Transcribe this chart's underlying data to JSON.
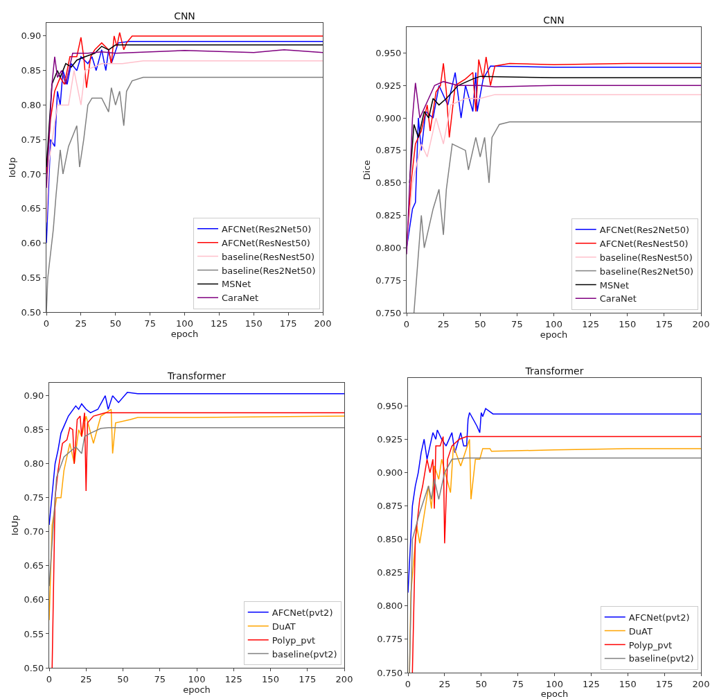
{
  "chart_data": [
    {
      "type": "line",
      "title": "CNN",
      "xlabel": "epoch",
      "ylabel": "IoUp",
      "legend": "bottom right",
      "xlim": [
        0,
        200
      ],
      "xticks": [
        0,
        25,
        50,
        75,
        100,
        125,
        150,
        175,
        200
      ],
      "ylim": [
        0.5,
        0.919
      ],
      "yticks": [
        {
          "value": 0.5,
          "label": "0.50"
        },
        {
          "value": 0.55,
          "label": "0.55"
        },
        {
          "value": 0.6,
          "label": "0.60"
        },
        {
          "value": 0.65,
          "label": "0.65"
        },
        {
          "value": 0.7,
          "label": "0.70"
        },
        {
          "value": 0.75,
          "label": "0.75"
        },
        {
          "value": 0.8,
          "label": "0.80"
        },
        {
          "value": 0.85,
          "label": "0.85"
        },
        {
          "value": 0.9,
          "label": "0.90"
        }
      ],
      "series": [
        {
          "name": "AFCNet(Res2Net50)",
          "color": "#0000ff",
          "x": [
            0,
            3,
            6,
            8,
            10,
            12,
            15,
            18,
            22,
            25,
            30,
            33,
            36,
            40,
            43,
            45,
            47,
            52,
            60,
            100,
            150,
            200
          ],
          "values": [
            0.6,
            0.75,
            0.74,
            0.82,
            0.8,
            0.85,
            0.83,
            0.86,
            0.85,
            0.87,
            0.86,
            0.87,
            0.85,
            0.88,
            0.85,
            0.88,
            0.86,
            0.89,
            0.892,
            0.892,
            0.892,
            0.892
          ]
        },
        {
          "name": "AFCNet(ResNest50)",
          "color": "#ff0000",
          "x": [
            0,
            3,
            6,
            10,
            13,
            17,
            22,
            25,
            27,
            29,
            32,
            35,
            40,
            45,
            47,
            49,
            51,
            53,
            56,
            58,
            62,
            100,
            150,
            200
          ],
          "values": [
            0.7,
            0.78,
            0.82,
            0.84,
            0.83,
            0.87,
            0.87,
            0.898,
            0.87,
            0.825,
            0.87,
            0.88,
            0.89,
            0.88,
            0.86,
            0.9,
            0.885,
            0.905,
            0.88,
            0.89,
            0.9,
            0.9,
            0.9,
            0.9
          ]
        },
        {
          "name": "baseline(ResNest50)",
          "color": "#ffc0cb",
          "x": [
            0,
            2,
            8,
            16,
            20,
            25,
            28,
            40,
            55,
            70,
            100,
            150,
            200
          ],
          "values": [
            0.63,
            0.72,
            0.8,
            0.8,
            0.85,
            0.8,
            0.85,
            0.86,
            0.86,
            0.864,
            0.864,
            0.864,
            0.864
          ]
        },
        {
          "name": "baseline(Res2Net50)",
          "color": "#808080",
          "x": [
            0,
            1,
            5,
            7,
            10,
            12,
            16,
            20,
            22,
            24,
            27,
            30,
            33,
            40,
            45,
            47,
            50,
            53,
            56,
            58,
            62,
            70,
            100,
            150,
            200
          ],
          "values": [
            0.5,
            0.55,
            0.62,
            0.67,
            0.735,
            0.7,
            0.74,
            0.76,
            0.77,
            0.71,
            0.75,
            0.8,
            0.81,
            0.81,
            0.79,
            0.825,
            0.8,
            0.82,
            0.77,
            0.82,
            0.835,
            0.84,
            0.84,
            0.84,
            0.84
          ]
        },
        {
          "name": "MSNet",
          "color": "#000000",
          "x": [
            0,
            4,
            8,
            10,
            14,
            18,
            22,
            28,
            35,
            40,
            45,
            50,
            100,
            150,
            200
          ],
          "values": [
            0.71,
            0.83,
            0.85,
            0.84,
            0.86,
            0.855,
            0.865,
            0.87,
            0.875,
            0.885,
            0.88,
            0.887,
            0.887,
            0.887,
            0.887
          ]
        },
        {
          "name": "CaraNet",
          "color": "#800080",
          "x": [
            0,
            4,
            6,
            8,
            11,
            14,
            19,
            30,
            40,
            50,
            100,
            150,
            172,
            200
          ],
          "values": [
            0.68,
            0.83,
            0.87,
            0.84,
            0.85,
            0.83,
            0.875,
            0.875,
            0.877,
            0.875,
            0.879,
            0.876,
            0.88,
            0.876
          ]
        }
      ]
    },
    {
      "type": "line",
      "title": "CNN",
      "xlabel": "epoch",
      "ylabel": "Dice",
      "legend": "bottom right",
      "xlim": [
        0,
        200
      ],
      "xticks": [
        0,
        25,
        50,
        75,
        100,
        125,
        150,
        175,
        200
      ],
      "ylim": [
        0.75,
        0.97
      ],
      "yticks": [
        {
          "value": 0.75,
          "label": "0.750"
        },
        {
          "value": 0.775,
          "label": "0.775"
        },
        {
          "value": 0.8,
          "label": "0.800"
        },
        {
          "value": 0.825,
          "label": "0.825"
        },
        {
          "value": 0.85,
          "label": "0.850"
        },
        {
          "value": 0.875,
          "label": "0.875"
        },
        {
          "value": 0.9,
          "label": "0.900"
        },
        {
          "value": 0.925,
          "label": "0.925"
        },
        {
          "value": 0.95,
          "label": "0.950"
        }
      ],
      "series": [
        {
          "name": "AFCNet(Res2Net50)",
          "color": "#0000ff",
          "x": [
            0,
            4,
            6,
            8,
            10,
            13,
            18,
            22,
            28,
            33,
            37,
            40,
            45,
            47,
            48,
            52,
            57,
            100,
            150,
            200
          ],
          "values": [
            0.8,
            0.83,
            0.835,
            0.9,
            0.875,
            0.905,
            0.9,
            0.925,
            0.91,
            0.935,
            0.9,
            0.925,
            0.905,
            0.935,
            0.905,
            0.93,
            0.94,
            0.939,
            0.939,
            0.939
          ]
        },
        {
          "name": "AFCNet(ResNest50)",
          "color": "#ff0000",
          "x": [
            0,
            3,
            6,
            10,
            14,
            16,
            20,
            23,
            25,
            27,
            29,
            33,
            40,
            45,
            47,
            49,
            52,
            54,
            57,
            60,
            70,
            100,
            150,
            200
          ],
          "values": [
            0.8,
            0.85,
            0.88,
            0.89,
            0.91,
            0.89,
            0.92,
            0.925,
            0.942,
            0.92,
            0.885,
            0.925,
            0.93,
            0.935,
            0.905,
            0.945,
            0.93,
            0.947,
            0.925,
            0.94,
            0.942,
            0.941,
            0.942,
            0.942
          ]
        },
        {
          "name": "baseline(ResNest50)",
          "color": "#ffc0cb",
          "x": [
            0,
            4,
            10,
            14,
            20,
            25,
            30,
            40,
            50,
            60,
            100,
            150,
            200
          ],
          "values": [
            0.8,
            0.85,
            0.88,
            0.87,
            0.9,
            0.88,
            0.91,
            0.915,
            0.915,
            0.918,
            0.918,
            0.918,
            0.918
          ]
        },
        {
          "name": "baseline(Res2Net50)",
          "color": "#808080",
          "x": [
            5,
            7,
            10,
            12,
            18,
            22,
            25,
            27,
            31,
            40,
            42,
            47,
            50,
            53,
            56,
            58,
            63,
            70,
            100,
            150,
            200
          ],
          "values": [
            0.75,
            0.78,
            0.825,
            0.8,
            0.83,
            0.845,
            0.81,
            0.845,
            0.88,
            0.875,
            0.86,
            0.885,
            0.87,
            0.885,
            0.85,
            0.885,
            0.895,
            0.897,
            0.897,
            0.897,
            0.897
          ]
        },
        {
          "name": "MSNet",
          "color": "#000000",
          "x": [
            2,
            5,
            8,
            12,
            15,
            18,
            22,
            27,
            35,
            45,
            50,
            100,
            150,
            200
          ],
          "values": [
            0.85,
            0.895,
            0.885,
            0.905,
            0.9,
            0.915,
            0.91,
            0.915,
            0.925,
            0.93,
            0.932,
            0.931,
            0.931,
            0.931
          ]
        },
        {
          "name": "CaraNet",
          "color": "#800080",
          "x": [
            0,
            4,
            6,
            9,
            15,
            19,
            25,
            35,
            50,
            60,
            100,
            150,
            200
          ],
          "values": [
            0.795,
            0.9,
            0.927,
            0.9,
            0.915,
            0.925,
            0.928,
            0.925,
            0.925,
            0.924,
            0.925,
            0.925,
            0.925
          ]
        }
      ]
    },
    {
      "type": "line",
      "title": "Transformer",
      "xlabel": "epoch",
      "ylabel": "IoUp",
      "legend": "bottom right",
      "xlim": [
        0,
        200
      ],
      "xticks": [
        0,
        25,
        50,
        75,
        100,
        125,
        150,
        175,
        200
      ],
      "ylim": [
        0.5,
        0.919
      ],
      "yticks": [
        {
          "value": 0.5,
          "label": "0.50"
        },
        {
          "value": 0.55,
          "label": "0.55"
        },
        {
          "value": 0.6,
          "label": "0.60"
        },
        {
          "value": 0.65,
          "label": "0.65"
        },
        {
          "value": 0.7,
          "label": "0.70"
        },
        {
          "value": 0.75,
          "label": "0.75"
        },
        {
          "value": 0.8,
          "label": "0.80"
        },
        {
          "value": 0.85,
          "label": "0.85"
        },
        {
          "value": 0.9,
          "label": "0.90"
        }
      ],
      "series": [
        {
          "name": "AFCNet(pvt2)",
          "color": "#0000ff",
          "x": [
            0,
            4,
            6,
            8,
            11,
            13,
            18,
            20,
            22,
            25,
            28,
            33,
            38,
            40,
            43,
            47,
            53,
            60,
            100,
            150,
            200
          ],
          "values": [
            0.71,
            0.8,
            0.82,
            0.845,
            0.86,
            0.87,
            0.885,
            0.88,
            0.888,
            0.88,
            0.875,
            0.88,
            0.9,
            0.88,
            0.9,
            0.89,
            0.905,
            0.903,
            0.903,
            0.903,
            0.903
          ]
        },
        {
          "name": "DuAT",
          "color": "#ffa500",
          "x": [
            0,
            2,
            5,
            8,
            10,
            14,
            17,
            20,
            22,
            25,
            30,
            35,
            42,
            43,
            45,
            55,
            60,
            100,
            150,
            200
          ],
          "values": [
            0.57,
            0.71,
            0.75,
            0.75,
            0.79,
            0.83,
            0.8,
            0.85,
            0.84,
            0.87,
            0.83,
            0.87,
            0.88,
            0.815,
            0.86,
            0.865,
            0.868,
            0.868,
            0.869,
            0.87
          ]
        },
        {
          "name": "Polyp_pvt",
          "color": "#ff0000",
          "x": [
            2,
            4,
            6,
            9,
            12,
            14,
            16,
            17,
            19,
            21,
            22,
            24,
            25,
            26,
            30,
            38,
            100,
            150,
            200
          ],
          "values": [
            0.5,
            0.75,
            0.79,
            0.83,
            0.835,
            0.853,
            0.85,
            0.8,
            0.865,
            0.87,
            0.84,
            0.875,
            0.76,
            0.86,
            0.87,
            0.875,
            0.875,
            0.875,
            0.875
          ]
        },
        {
          "name": "baseline(pvt2)",
          "color": "#808080",
          "x": [
            0,
            5,
            10,
            18,
            22,
            24,
            28,
            35,
            40,
            100,
            150,
            200
          ],
          "values": [
            0.62,
            0.78,
            0.81,
            0.825,
            0.815,
            0.84,
            0.845,
            0.852,
            0.853,
            0.853,
            0.853,
            0.853
          ]
        }
      ]
    },
    {
      "type": "line",
      "title": "Transformer",
      "xlabel": "epoch",
      "legend": "bottom right",
      "xlim": [
        0,
        200
      ],
      "xticks": [
        0,
        25,
        50,
        75,
        100,
        125,
        150,
        175,
        200
      ],
      "ylim": [
        0.75,
        0.971
      ],
      "yticks": [
        {
          "value": 0.75,
          "label": "0.750"
        },
        {
          "value": 0.775,
          "label": "0.775"
        },
        {
          "value": 0.8,
          "label": "0.800"
        },
        {
          "value": 0.825,
          "label": "0.825"
        },
        {
          "value": 0.85,
          "label": "0.850"
        },
        {
          "value": 0.875,
          "label": "0.875"
        },
        {
          "value": 0.9,
          "label": "0.900"
        },
        {
          "value": 0.925,
          "label": "0.925"
        },
        {
          "value": 0.95,
          "label": "0.950"
        }
      ],
      "series": [
        {
          "name": "AFCNet(pvt2)",
          "color": "#0000ff",
          "x": [
            0,
            3,
            5,
            7,
            9,
            11,
            13,
            17,
            19,
            20,
            23,
            26,
            30,
            32,
            36,
            38,
            40,
            41,
            42,
            47,
            49,
            50,
            51,
            53,
            58,
            100,
            150,
            200
          ],
          "values": [
            0.81,
            0.875,
            0.89,
            0.9,
            0.915,
            0.925,
            0.91,
            0.93,
            0.925,
            0.932,
            0.925,
            0.92,
            0.93,
            0.915,
            0.93,
            0.92,
            0.92,
            0.94,
            0.945,
            0.935,
            0.93,
            0.945,
            0.942,
            0.948,
            0.944,
            0.944,
            0.944,
            0.944
          ]
        },
        {
          "name": "DuAT",
          "color": "#ffa500",
          "x": [
            1,
            2,
            6,
            8,
            12,
            14,
            16,
            18,
            21,
            23,
            29,
            31,
            36,
            42,
            43,
            46,
            49,
            51,
            56,
            57,
            100,
            150,
            200
          ],
          "values": [
            0.75,
            0.81,
            0.86,
            0.847,
            0.875,
            0.89,
            0.873,
            0.905,
            0.895,
            0.91,
            0.885,
            0.92,
            0.905,
            0.925,
            0.88,
            0.91,
            0.91,
            0.918,
            0.918,
            0.916,
            0.917,
            0.918,
            0.918
          ]
        },
        {
          "name": "Polyp_pvt",
          "color": "#ff0000",
          "x": [
            3,
            5,
            8,
            10,
            13,
            15,
            17,
            18,
            19,
            22,
            24,
            25,
            27,
            30,
            35,
            40,
            100,
            150,
            200
          ],
          "values": [
            0.75,
            0.85,
            0.88,
            0.89,
            0.91,
            0.9,
            0.91,
            0.873,
            0.92,
            0.92,
            0.927,
            0.847,
            0.91,
            0.92,
            0.925,
            0.927,
            0.927,
            0.927,
            0.927
          ]
        },
        {
          "name": "baseline(pvt2)",
          "color": "#808080",
          "x": [
            1,
            3,
            8,
            14,
            16,
            18,
            21,
            25,
            30,
            40,
            100,
            150,
            200
          ],
          "values": [
            0.75,
            0.85,
            0.87,
            0.89,
            0.88,
            0.895,
            0.88,
            0.9,
            0.91,
            0.911,
            0.911,
            0.911,
            0.911
          ]
        }
      ]
    }
  ]
}
